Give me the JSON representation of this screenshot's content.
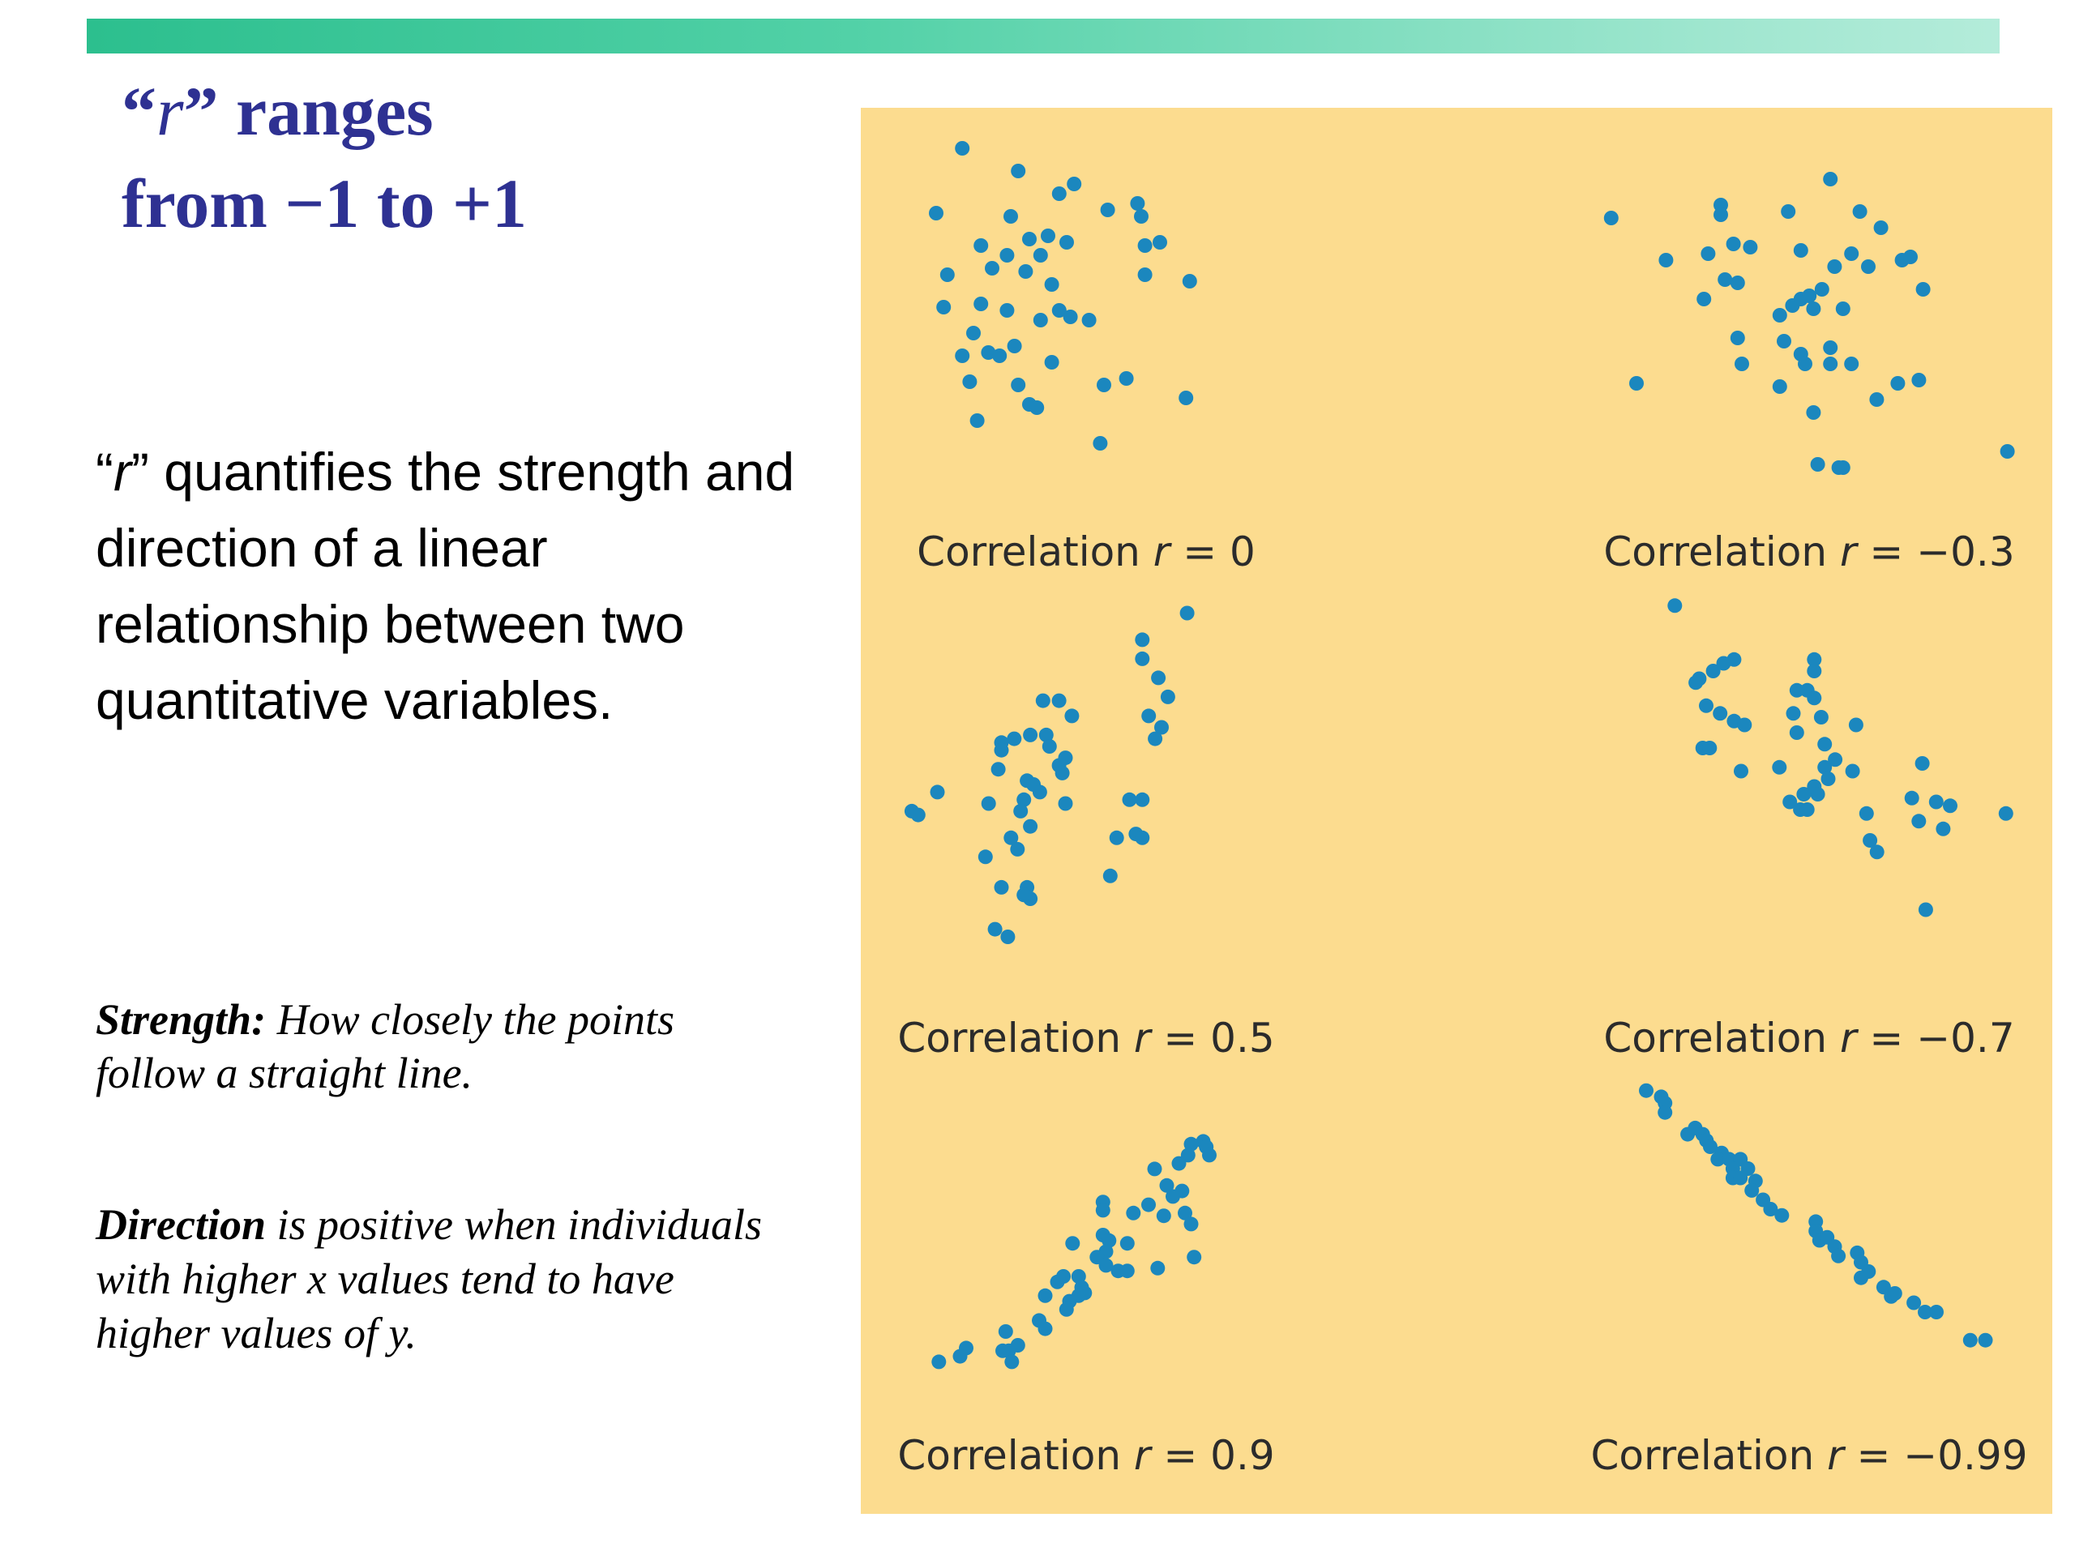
{
  "header": {
    "title_line1_q_open": "“",
    "title_line1_r": "r",
    "title_line1_rest": "” ranges",
    "title_line2": "from −1 to +1"
  },
  "intro": {
    "q_open": "“",
    "r": "r",
    "rest": "” quantifies the strength and direction of a linear relationship between two quantitative variables."
  },
  "strength": {
    "lead": "Strength:",
    "text": " How closely the points follow a straight line."
  },
  "direction": {
    "lead": "Direction",
    "text": " is positive when individuals with higher x values tend to have higher values of  y."
  },
  "colors": {
    "title": "#2e3192",
    "panel_background": "#fcdc8f",
    "point": "#1b87be",
    "top_bar_start": "#2cbf8e",
    "top_bar_end": "#b4ecda"
  },
  "chart_data": [
    {
      "type": "scatter",
      "title": "Correlation r = 0",
      "caption_prefix": "Correlation ",
      "caption_r": "r",
      "caption_value": " = 0",
      "r": 0,
      "points": [
        [
          1.2,
          9.5
        ],
        [
          2.7,
          8.8
        ],
        [
          3.8,
          8.1
        ],
        [
          4.2,
          8.4
        ],
        [
          0.5,
          7.5
        ],
        [
          2.5,
          7.4
        ],
        [
          5.1,
          7.6
        ],
        [
          6.0,
          7.4
        ],
        [
          5.9,
          7.8
        ],
        [
          3.0,
          6.7
        ],
        [
          3.5,
          6.8
        ],
        [
          4.0,
          6.6
        ],
        [
          1.7,
          6.5
        ],
        [
          2.4,
          6.2
        ],
        [
          3.3,
          6.2
        ],
        [
          6.1,
          6.5
        ],
        [
          6.5,
          6.6
        ],
        [
          0.8,
          5.6
        ],
        [
          2.0,
          5.8
        ],
        [
          2.9,
          5.7
        ],
        [
          3.6,
          5.3
        ],
        [
          6.1,
          5.6
        ],
        [
          7.3,
          5.4
        ],
        [
          0.7,
          4.6
        ],
        [
          1.7,
          4.7
        ],
        [
          2.4,
          4.5
        ],
        [
          3.3,
          4.2
        ],
        [
          3.8,
          4.5
        ],
        [
          4.1,
          4.3
        ],
        [
          4.6,
          4.2
        ],
        [
          1.5,
          3.8
        ],
        [
          1.2,
          3.1
        ],
        [
          1.9,
          3.2
        ],
        [
          2.2,
          3.1
        ],
        [
          2.6,
          3.4
        ],
        [
          3.6,
          2.9
        ],
        [
          1.4,
          2.3
        ],
        [
          2.7,
          2.2
        ],
        [
          5.6,
          2.4
        ],
        [
          5.0,
          2.2
        ],
        [
          3.0,
          1.6
        ],
        [
          3.2,
          1.5
        ],
        [
          7.2,
          1.8
        ],
        [
          4.9,
          0.4
        ],
        [
          1.6,
          1.1
        ]
      ]
    },
    {
      "type": "scatter",
      "title": "Correlation r = −0.3",
      "caption_prefix": "Correlation ",
      "caption_r": "r",
      "caption_value": " = −0.3",
      "r": -0.3,
      "points": [
        [
          5.6,
          9.3
        ],
        [
          3.0,
          8.5
        ],
        [
          3.0,
          8.2
        ],
        [
          4.6,
          8.3
        ],
        [
          6.3,
          8.3
        ],
        [
          0.4,
          8.1
        ],
        [
          6.8,
          7.8
        ],
        [
          3.3,
          7.3
        ],
        [
          3.7,
          7.2
        ],
        [
          4.9,
          7.1
        ],
        [
          2.7,
          7.0
        ],
        [
          6.1,
          7.0
        ],
        [
          7.3,
          6.8
        ],
        [
          7.5,
          6.9
        ],
        [
          1.7,
          6.8
        ],
        [
          5.7,
          6.6
        ],
        [
          6.5,
          6.6
        ],
        [
          3.4,
          6.1
        ],
        [
          3.1,
          6.2
        ],
        [
          5.4,
          5.9
        ],
        [
          4.9,
          5.6
        ],
        [
          5.1,
          5.7
        ],
        [
          7.8,
          5.9
        ],
        [
          2.6,
          5.6
        ],
        [
          4.7,
          5.4
        ],
        [
          5.2,
          5.3
        ],
        [
          5.9,
          5.3
        ],
        [
          4.4,
          5.1
        ],
        [
          3.4,
          4.4
        ],
        [
          4.5,
          4.3
        ],
        [
          4.9,
          3.9
        ],
        [
          5.6,
          4.1
        ],
        [
          6.1,
          3.6
        ],
        [
          3.5,
          3.6
        ],
        [
          5.0,
          3.6
        ],
        [
          5.6,
          3.6
        ],
        [
          1.0,
          3.0
        ],
        [
          4.4,
          2.9
        ],
        [
          7.2,
          3.0
        ],
        [
          7.7,
          3.1
        ],
        [
          6.7,
          2.5
        ],
        [
          5.2,
          2.1
        ],
        [
          5.3,
          0.5
        ],
        [
          5.8,
          0.4
        ],
        [
          5.9,
          0.4
        ],
        [
          9.8,
          0.9
        ]
      ]
    },
    {
      "type": "scatter",
      "title": "Correlation r = 0.5",
      "caption_prefix": "Correlation ",
      "caption_r": "r",
      "caption_value": " = 0.5",
      "r": 0.5,
      "points": [
        [
          8.8,
          9.5
        ],
        [
          7.4,
          8.8
        ],
        [
          7.4,
          8.3
        ],
        [
          7.9,
          7.8
        ],
        [
          8.2,
          7.3
        ],
        [
          4.3,
          7.2
        ],
        [
          4.8,
          7.2
        ],
        [
          5.2,
          6.8
        ],
        [
          7.6,
          6.8
        ],
        [
          8.0,
          6.5
        ],
        [
          4.4,
          6.3
        ],
        [
          4.5,
          6.0
        ],
        [
          7.8,
          6.2
        ],
        [
          3.0,
          6.1
        ],
        [
          3.4,
          6.2
        ],
        [
          3.9,
          6.3
        ],
        [
          3.0,
          5.9
        ],
        [
          2.9,
          5.4
        ],
        [
          4.8,
          5.5
        ],
        [
          4.9,
          5.3
        ],
        [
          5.0,
          5.7
        ],
        [
          3.8,
          5.1
        ],
        [
          4.0,
          5.0
        ],
        [
          4.2,
          4.8
        ],
        [
          1.0,
          4.8
        ],
        [
          0.2,
          4.3
        ],
        [
          0.4,
          4.2
        ],
        [
          2.6,
          4.5
        ],
        [
          3.7,
          4.6
        ],
        [
          3.6,
          4.3
        ],
        [
          5.0,
          4.5
        ],
        [
          7.0,
          4.6
        ],
        [
          7.4,
          4.6
        ],
        [
          3.9,
          3.9
        ],
        [
          3.3,
          3.6
        ],
        [
          3.5,
          3.3
        ],
        [
          6.6,
          3.6
        ],
        [
          7.2,
          3.7
        ],
        [
          7.4,
          3.6
        ],
        [
          2.5,
          3.1
        ],
        [
          6.4,
          2.6
        ],
        [
          3.0,
          2.3
        ],
        [
          3.8,
          2.3
        ],
        [
          3.9,
          2.0
        ],
        [
          3.7,
          2.1
        ],
        [
          2.8,
          1.2
        ],
        [
          3.2,
          1.0
        ]
      ]
    },
    {
      "type": "scatter",
      "title": "Correlation r = −0.7",
      "caption_prefix": "Correlation ",
      "caption_r": "r",
      "caption_value": " = −0.7",
      "r": -0.7,
      "points": [
        [
          0.1,
          9.7
        ],
        [
          0.8,
          7.8
        ],
        [
          0.7,
          7.7
        ],
        [
          1.2,
          8.0
        ],
        [
          1.5,
          8.2
        ],
        [
          1.8,
          8.3
        ],
        [
          4.1,
          8.3
        ],
        [
          4.1,
          8.0
        ],
        [
          3.6,
          7.5
        ],
        [
          3.9,
          7.5
        ],
        [
          4.1,
          7.3
        ],
        [
          1.0,
          7.1
        ],
        [
          1.4,
          6.9
        ],
        [
          3.5,
          6.9
        ],
        [
          4.3,
          6.8
        ],
        [
          1.8,
          6.7
        ],
        [
          2.1,
          6.6
        ],
        [
          3.6,
          6.4
        ],
        [
          5.3,
          6.6
        ],
        [
          0.9,
          6.0
        ],
        [
          1.1,
          6.0
        ],
        [
          4.4,
          6.1
        ],
        [
          4.7,
          5.7
        ],
        [
          4.4,
          5.5
        ],
        [
          2.0,
          5.4
        ],
        [
          3.1,
          5.5
        ],
        [
          5.2,
          5.4
        ],
        [
          4.5,
          5.2
        ],
        [
          7.2,
          5.6
        ],
        [
          4.1,
          5.0
        ],
        [
          4.2,
          4.8
        ],
        [
          3.4,
          4.6
        ],
        [
          3.8,
          4.8
        ],
        [
          3.7,
          4.4
        ],
        [
          3.9,
          4.4
        ],
        [
          6.9,
          4.7
        ],
        [
          7.6,
          4.6
        ],
        [
          8.0,
          4.5
        ],
        [
          5.6,
          4.3
        ],
        [
          7.1,
          4.1
        ],
        [
          7.8,
          3.9
        ],
        [
          9.6,
          4.3
        ],
        [
          5.7,
          3.6
        ],
        [
          5.9,
          3.3
        ],
        [
          7.3,
          1.8
        ]
      ]
    },
    {
      "type": "scatter",
      "title": "Correlation r = 0.9",
      "caption_prefix": "Correlation ",
      "caption_r": "r",
      "caption_value": " = 0.9",
      "r": 0.9,
      "points": [
        [
          9.0,
          9.4
        ],
        [
          8.6,
          9.3
        ],
        [
          9.1,
          9.2
        ],
        [
          8.5,
          8.9
        ],
        [
          9.2,
          8.9
        ],
        [
          8.2,
          8.6
        ],
        [
          7.4,
          8.4
        ],
        [
          7.8,
          7.8
        ],
        [
          8.3,
          7.6
        ],
        [
          8.0,
          7.4
        ],
        [
          5.7,
          7.2
        ],
        [
          5.7,
          6.9
        ],
        [
          7.2,
          7.1
        ],
        [
          6.7,
          6.8
        ],
        [
          8.4,
          6.8
        ],
        [
          7.7,
          6.7
        ],
        [
          8.6,
          6.4
        ],
        [
          5.7,
          6.0
        ],
        [
          5.9,
          5.8
        ],
        [
          4.7,
          5.7
        ],
        [
          6.5,
          5.7
        ],
        [
          5.8,
          5.4
        ],
        [
          8.7,
          5.2
        ],
        [
          5.5,
          5.2
        ],
        [
          5.8,
          4.9
        ],
        [
          6.2,
          4.7
        ],
        [
          6.5,
          4.7
        ],
        [
          7.5,
          4.8
        ],
        [
          4.9,
          4.5
        ],
        [
          4.2,
          4.3
        ],
        [
          4.4,
          4.5
        ],
        [
          5.0,
          4.1
        ],
        [
          5.1,
          3.9
        ],
        [
          4.9,
          3.8
        ],
        [
          3.8,
          3.8
        ],
        [
          4.6,
          3.6
        ],
        [
          4.5,
          3.3
        ],
        [
          3.6,
          2.9
        ],
        [
          3.8,
          2.6
        ],
        [
          2.5,
          2.5
        ],
        [
          2.9,
          2.0
        ],
        [
          2.6,
          1.8
        ],
        [
          1.2,
          1.9
        ],
        [
          2.4,
          1.8
        ],
        [
          1.0,
          1.6
        ],
        [
          2.7,
          1.4
        ],
        [
          0.3,
          1.4
        ]
      ]
    },
    {
      "type": "scatter",
      "title": "Correlation r = −0.99",
      "caption_prefix": "Correlation ",
      "caption_r": "r",
      "caption_value": " = −0.99",
      "r": -0.99,
      "points": [
        [
          0.3,
          9.8
        ],
        [
          0.7,
          9.6
        ],
        [
          0.8,
          9.4
        ],
        [
          0.8,
          9.1
        ],
        [
          1.4,
          8.4
        ],
        [
          1.6,
          8.6
        ],
        [
          1.8,
          8.4
        ],
        [
          1.9,
          8.2
        ],
        [
          2.0,
          8.0
        ],
        [
          2.3,
          7.8
        ],
        [
          2.2,
          7.6
        ],
        [
          2.5,
          7.6
        ],
        [
          2.8,
          7.6
        ],
        [
          2.6,
          7.3
        ],
        [
          3.0,
          7.3
        ],
        [
          2.6,
          7.0
        ],
        [
          2.8,
          7.0
        ],
        [
          3.2,
          6.9
        ],
        [
          3.1,
          6.6
        ],
        [
          3.4,
          6.3
        ],
        [
          3.6,
          6.0
        ],
        [
          3.9,
          5.8
        ],
        [
          4.8,
          5.6
        ],
        [
          4.8,
          5.3
        ],
        [
          4.9,
          5.0
        ],
        [
          5.1,
          5.1
        ],
        [
          5.3,
          4.8
        ],
        [
          5.4,
          4.5
        ],
        [
          5.9,
          4.6
        ],
        [
          6.0,
          4.3
        ],
        [
          6.2,
          4.0
        ],
        [
          6.0,
          3.8
        ],
        [
          6.6,
          3.5
        ],
        [
          6.8,
          3.2
        ],
        [
          6.9,
          3.3
        ],
        [
          7.4,
          3.0
        ],
        [
          7.7,
          2.7
        ],
        [
          8.0,
          2.7
        ],
        [
          8.9,
          1.8
        ],
        [
          9.3,
          1.8
        ]
      ]
    }
  ]
}
